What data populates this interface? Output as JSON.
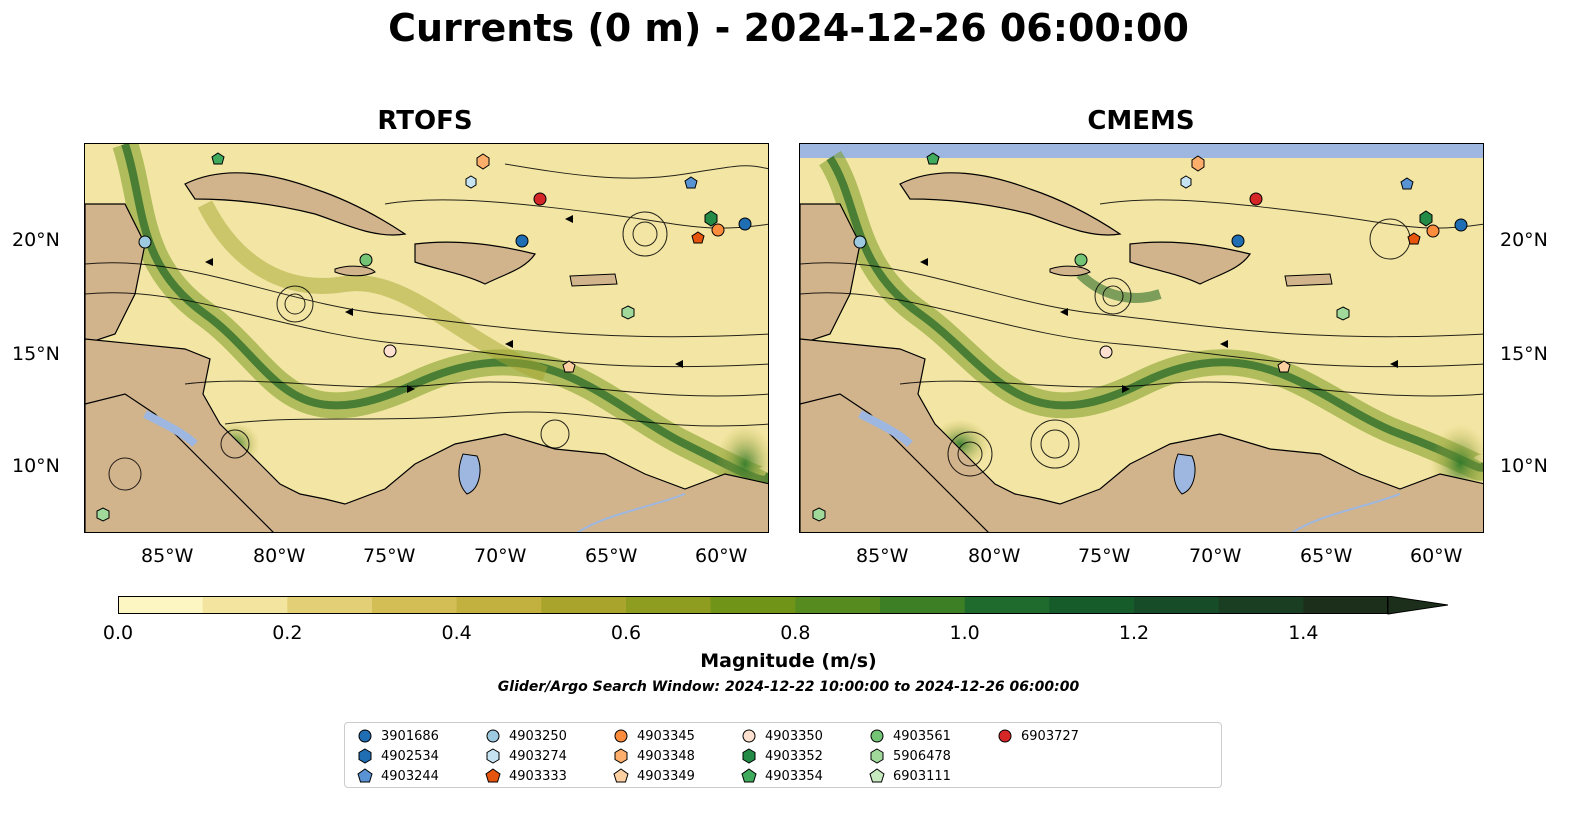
{
  "title": "Currents (0 m) - 2024-12-26 06:00:00",
  "panels": [
    {
      "id": "rtofs",
      "title": "RTOFS"
    },
    {
      "id": "cmems",
      "title": "CMEMS"
    }
  ],
  "axes": {
    "lon_ticks": [
      "85°W",
      "80°W",
      "75°W",
      "70°W",
      "65°W",
      "60°W"
    ],
    "lat_ticks": [
      "20°N",
      "15°N",
      "10°N"
    ]
  },
  "colorbar": {
    "label": "Magnitude (m/s)",
    "ticks": [
      "0.0",
      "0.2",
      "0.4",
      "0.6",
      "0.8",
      "1.0",
      "1.2",
      "1.4"
    ],
    "range": [
      0,
      1.5
    ],
    "extend": "max",
    "colors": [
      "#fdf6c3",
      "#f3e5a0",
      "#e3cf75",
      "#d3bd55",
      "#c2b03f",
      "#a9a42c",
      "#8e9c1f",
      "#709418",
      "#558b1f",
      "#3d7f24",
      "#1f6b2e",
      "#165c2a",
      "#164c27",
      "#1a3e22",
      "#1c2f1b"
    ]
  },
  "subtitle": "Glider/Argo Search Window: 2024-12-22 10:00:00 to 2024-12-26 06:00:00",
  "land_color": "#d2b48c",
  "water_color": "#9db7e0",
  "legend": [
    {
      "id": "3901686",
      "shape": "circle",
      "color": "#1f6db3"
    },
    {
      "id": "4902534",
      "shape": "hexagon",
      "color": "#1f6db3"
    },
    {
      "id": "4903244",
      "shape": "pentagon",
      "color": "#5a93d4"
    },
    {
      "id": "4903250",
      "shape": "circle",
      "color": "#9ecae1"
    },
    {
      "id": "4903274",
      "shape": "hexagon",
      "color": "#c6e3f2"
    },
    {
      "id": "4903333",
      "shape": "pentagon",
      "color": "#e6550d"
    },
    {
      "id": "4903345",
      "shape": "circle",
      "color": "#fd8d3c"
    },
    {
      "id": "4903348",
      "shape": "hexagon",
      "color": "#fdae6b"
    },
    {
      "id": "4903349",
      "shape": "pentagon",
      "color": "#fdd0a2"
    },
    {
      "id": "4903350",
      "shape": "circle",
      "color": "#fde0d0"
    },
    {
      "id": "4903352",
      "shape": "hexagon",
      "color": "#238b45"
    },
    {
      "id": "4903354",
      "shape": "pentagon",
      "color": "#41ab5d"
    },
    {
      "id": "4903561",
      "shape": "circle",
      "color": "#74c476"
    },
    {
      "id": "5906478",
      "shape": "hexagon",
      "color": "#a1d99b"
    },
    {
      "id": "6903111",
      "shape": "pentagon",
      "color": "#c7e9c0"
    },
    {
      "id": "6903727",
      "shape": "circle",
      "color": "#d62728"
    }
  ]
}
